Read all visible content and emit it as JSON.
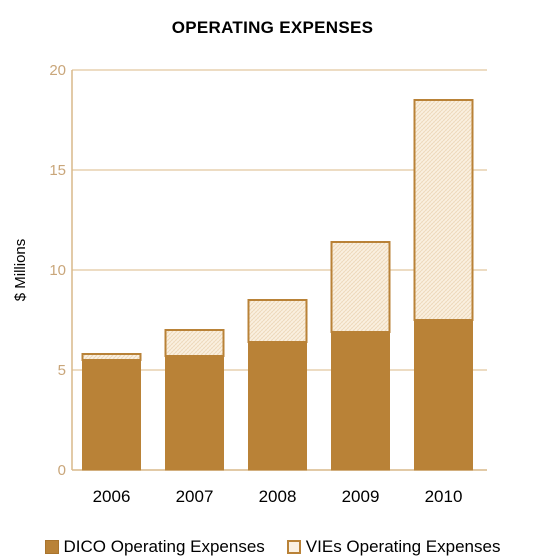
{
  "chart_data": {
    "type": "bar",
    "stacked": true,
    "title": "OPERATING EXPENSES",
    "xlabel": "",
    "ylabel": "$ Millions",
    "categories": [
      "2006",
      "2007",
      "2008",
      "2009",
      "2010"
    ],
    "series": [
      {
        "name": "DICO Operating Expenses",
        "values": [
          5.5,
          5.7,
          6.4,
          6.9,
          7.5
        ],
        "color": "#b98237"
      },
      {
        "name": "VIEs Operating Expenses",
        "values": [
          0.3,
          1.3,
          2.1,
          4.5,
          11.0
        ],
        "color": "#fbf1e2"
      }
    ],
    "ylim": [
      0,
      20
    ],
    "yticks": [
      "0",
      "5",
      "10",
      "15",
      "20"
    ],
    "grid": true,
    "legend": "bottom"
  }
}
